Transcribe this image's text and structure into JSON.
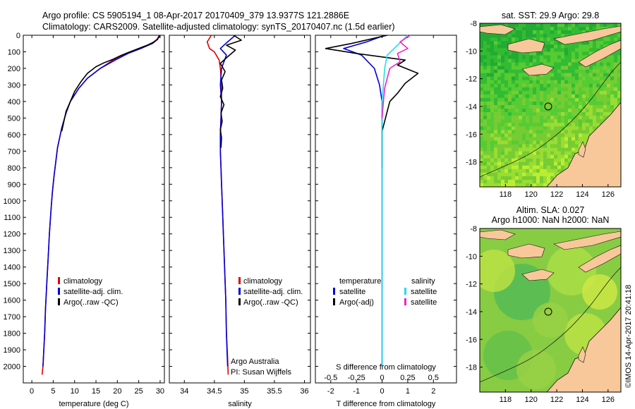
{
  "header": {
    "line1": "Argo profile: CS 5905194_1 08-Apr-2017 20170409_379 13.9377S 121.2886E",
    "line2": "Climatology: CARS2009. Satellite-adjusted climatology: synTS_20170407.nc (1.5d earlier)"
  },
  "colors": {
    "climatology": "#e00000",
    "satellite": "#0000dd",
    "argo": "#000000",
    "salinity_satellite": "#22ddee",
    "salinity_argo": "#ee22cc",
    "land": "#f8c89a",
    "sst_ocean": "#55cc33",
    "sla_ocean": "#77cc44"
  },
  "chart_data": [
    {
      "type": "line",
      "id": "temperature",
      "xlabel": "temperature (deg C)",
      "xlim": [
        -2,
        31
      ],
      "ylim": [
        2100,
        0
      ],
      "xticks": [
        0,
        5,
        10,
        15,
        20,
        25,
        30
      ],
      "yticks": [
        0,
        100,
        200,
        300,
        400,
        500,
        600,
        700,
        800,
        900,
        1000,
        1100,
        1200,
        1300,
        1400,
        1500,
        1600,
        1700,
        1800,
        1900,
        2000
      ],
      "legend": [
        "climatology",
        "satellite-adj. clim.",
        "Argo(..raw -QC)"
      ],
      "series": [
        {
          "name": "climatology",
          "color": "#e00000",
          "x": [
            29.8,
            29.3,
            28,
            25,
            22,
            19,
            16,
            13,
            11,
            9,
            8,
            7,
            6,
            5.2,
            4.8,
            4.5,
            4.1,
            3.8,
            3.5,
            3.2,
            3.0,
            2.8,
            2.6,
            2.4
          ],
          "y": [
            0,
            25,
            50,
            80,
            110,
            150,
            200,
            260,
            320,
            400,
            470,
            560,
            680,
            850,
            950,
            1050,
            1200,
            1350,
            1500,
            1650,
            1800,
            1900,
            2000,
            2050
          ]
        },
        {
          "name": "satellite-adj. clim.",
          "color": "#0000dd",
          "x": [
            29.9,
            29.4,
            28.2,
            25.5,
            22.5,
            19.5,
            16,
            13,
            11,
            9,
            8,
            7,
            6,
            5.2,
            4.8,
            4.5,
            4.1,
            3.8,
            3.5,
            3.2,
            3.0,
            2.8,
            2.6
          ],
          "y": [
            0,
            25,
            50,
            80,
            110,
            150,
            200,
            260,
            320,
            400,
            470,
            560,
            680,
            850,
            950,
            1050,
            1200,
            1350,
            1500,
            1650,
            1800,
            1900,
            2000
          ]
        },
        {
          "name": "Argo(..raw -QC)",
          "color": "#000000",
          "x": [
            30.0,
            29.5,
            28.6,
            27,
            25,
            23,
            21,
            19,
            17,
            15,
            13,
            11.5,
            10,
            9,
            8,
            7.5,
            7
          ],
          "y": [
            0,
            20,
            40,
            60,
            80,
            100,
            120,
            145,
            165,
            190,
            230,
            280,
            340,
            400,
            460,
            520,
            580
          ]
        }
      ]
    },
    {
      "type": "line",
      "id": "salinity",
      "xlabel": "salinity",
      "xlim": [
        33.75,
        36.1
      ],
      "ylim": [
        2100,
        0
      ],
      "xticks": [
        34,
        34.5,
        35,
        35.5,
        36
      ],
      "legend": [
        "climatology",
        "satellite-adj. clim.",
        "Argo(..raw -QC)"
      ],
      "annotations": [
        "Argo Australia",
        "PI: Susan Wijffels"
      ],
      "series": [
        {
          "name": "climatology",
          "color": "#e00000",
          "x": [
            34.45,
            34.38,
            34.42,
            34.5,
            34.58,
            34.6,
            34.62,
            34.62,
            34.61,
            34.6,
            34.6,
            34.61,
            34.62,
            34.63,
            34.65,
            34.67,
            34.69,
            34.7,
            34.72,
            34.73
          ],
          "y": [
            0,
            40,
            80,
            100,
            150,
            200,
            300,
            400,
            500,
            600,
            700,
            800,
            900,
            1000,
            1200,
            1400,
            1600,
            1800,
            1950,
            2050
          ]
        },
        {
          "name": "satellite-adj. clim.",
          "color": "#0000dd",
          "x": [
            34.85,
            34.72,
            34.6,
            34.7,
            34.62,
            34.6,
            34.62,
            34.61,
            34.6,
            34.6,
            34.61,
            34.62,
            34.63,
            34.65,
            34.67,
            34.69,
            34.7,
            34.72
          ],
          "y": [
            0,
            40,
            80,
            120,
            200,
            300,
            400,
            500,
            600,
            700,
            800,
            900,
            1000,
            1200,
            1400,
            1600,
            1800,
            2000
          ]
        },
        {
          "name": "Argo(..raw -QC)",
          "color": "#000000",
          "x": [
            34.82,
            34.95,
            34.7,
            34.85,
            34.72,
            34.6,
            34.68,
            34.62,
            34.64,
            34.6,
            34.66,
            34.61,
            34.63,
            34.6,
            34.62,
            34.61
          ],
          "y": [
            0,
            30,
            60,
            90,
            130,
            170,
            220,
            270,
            320,
            370,
            420,
            470,
            520,
            570,
            620,
            680
          ]
        }
      ]
    },
    {
      "type": "line",
      "id": "difference",
      "xlabel": "T difference from climatology",
      "xlabel_top": "S difference from climatology",
      "xlim": [
        -2.6,
        2.9
      ],
      "ylim": [
        2100,
        0
      ],
      "xticks": [
        -2,
        -1,
        0,
        1,
        2
      ],
      "s_ticks": [
        "-0.5",
        "-0.25",
        "0",
        "0.25",
        "0.5"
      ],
      "s_tick_positions": [
        -2,
        -1,
        0,
        1,
        2
      ],
      "legend_headers": [
        "temperature",
        "salinity"
      ],
      "legend": [
        "satellite",
        "Argo(-adj)",
        "satellite",
        "Argo(-adj)"
      ],
      "series": [
        {
          "name": "satellite",
          "color": "#0000dd",
          "x": [
            0.1,
            -0.6,
            -1.5,
            -0.8,
            -0.3,
            -0.1,
            0,
            0,
            0,
            0,
            0
          ],
          "y": [
            0,
            40,
            80,
            120,
            200,
            300,
            400,
            600,
            1000,
            1500,
            2000
          ]
        },
        {
          "name": "Argo(-adj)",
          "color": "#000000",
          "x": [
            0.2,
            -1.2,
            -2.2,
            -1.0,
            0.9,
            0.6,
            1.4,
            0.9,
            0.6,
            0.3,
            0.2,
            0.1,
            0,
            0,
            0
          ],
          "y": [
            0,
            50,
            80,
            110,
            150,
            180,
            230,
            290,
            350,
            400,
            460,
            520,
            580,
            700,
            800
          ]
        },
        {
          "name": "satellite",
          "color": "#22ddee",
          "x": [
            1.0,
            0.6,
            0.2,
            0.1,
            0.05,
            0,
            0,
            0,
            0,
            0
          ],
          "y": [
            0,
            60,
            120,
            200,
            300,
            400,
            600,
            1000,
            1500,
            2000
          ]
        },
        {
          "name": "Argo(-adj)",
          "color": "#ee22cc",
          "x": [
            1.1,
            0.7,
            1.0,
            0.6,
            0.7,
            0.3,
            0.2,
            0.1,
            0.05,
            0
          ],
          "y": [
            0,
            40,
            80,
            110,
            160,
            200,
            260,
            320,
            400,
            500
          ]
        }
      ]
    },
    {
      "type": "heatmap",
      "id": "sst-map",
      "title": "sat. SST: 29.9 Argo: 29.8",
      "xlim": [
        116,
        127
      ],
      "ylim": [
        -19.8,
        -8
      ],
      "xticks": [
        "118",
        "120",
        "122",
        "124",
        "126"
      ],
      "xtick_values": [
        118,
        120,
        122,
        124,
        126
      ],
      "yticks": [
        "-8",
        "-10",
        "-12",
        "-14",
        "-16",
        "-18"
      ],
      "ytick_values": [
        -8,
        -10,
        -12,
        -14,
        -16,
        -18
      ],
      "marker": [
        121.29,
        -13.94
      ]
    },
    {
      "type": "heatmap",
      "id": "sla-map",
      "title_line1": "Altim. SLA: 0.027",
      "title_line2": "Argo h1000: NaN h2000: NaN",
      "xlim": [
        116,
        127
      ],
      "ylim": [
        -19.8,
        -8
      ],
      "xticks": [
        "118",
        "120",
        "122",
        "124",
        "126"
      ],
      "xtick_values": [
        118,
        120,
        122,
        124,
        126
      ],
      "yticks": [
        "-8",
        "-10",
        "-12",
        "-14",
        "-16",
        "-18"
      ],
      "ytick_values": [
        -8,
        -10,
        -12,
        -14,
        -16,
        -18
      ],
      "marker": [
        121.29,
        -13.94
      ]
    }
  ],
  "footer": {
    "stamp": "©IMOS 14-Apr-2017 20:41:18"
  }
}
